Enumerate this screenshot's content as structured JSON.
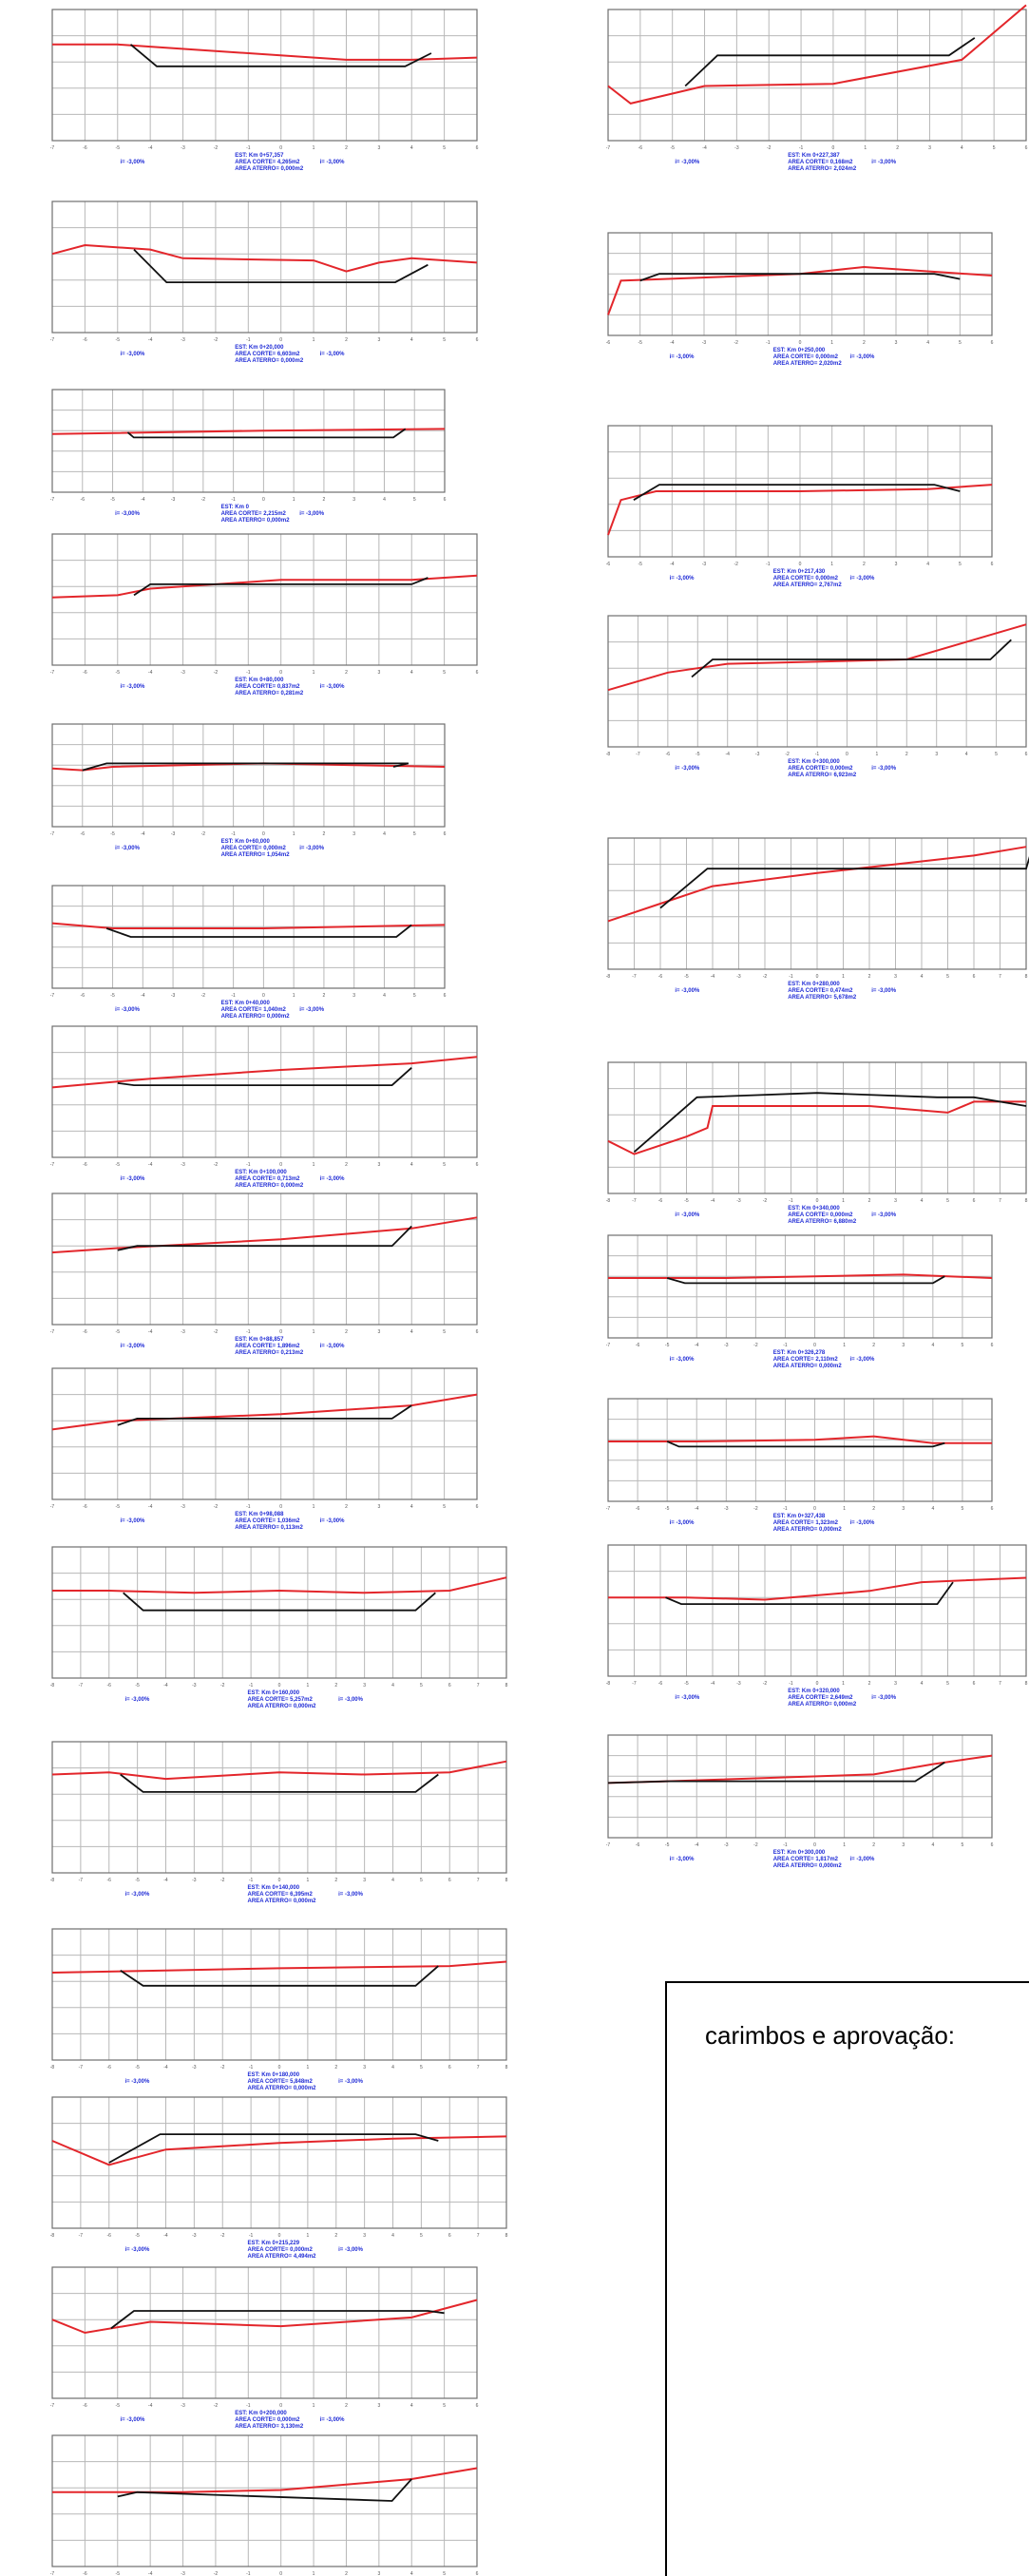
{
  "stamp": {
    "title": "carimbos e aprovação:"
  },
  "colors": {
    "grid": "#b8b8b8",
    "frame": "#6e6e6e",
    "terrain": "#e3262b",
    "design": "#111111",
    "label": "#1f2bd6"
  },
  "sections": [
    {
      "est": "EST: Km 0+57,357",
      "corte": "AREA CORTE= 4,265m2",
      "aterro": "AREA ATERRO= 0,000m2",
      "slope_left": "i= -3,00%",
      "slope_right": "i= -3,00%",
      "terrain": [
        [
          -7,
          4.4
        ],
        [
          -5,
          4.4
        ],
        [
          -4,
          4.3
        ],
        [
          2,
          3.7
        ],
        [
          4,
          3.7
        ],
        [
          6,
          3.8
        ]
      ],
      "design": [
        [
          -4.6,
          4.4
        ],
        [
          -3.8,
          3.4
        ],
        [
          3.8,
          3.4
        ],
        [
          4.6,
          4.0
        ]
      ]
    },
    {
      "est": "EST: Km 0+20,000",
      "corte": "AREA CORTE= 6,603m2",
      "aterro": "AREA ATERRO= 0,000m2",
      "slope_left": "i= -3,00%",
      "slope_right": "i= -3,00%",
      "terrain": [
        [
          -7,
          3.6
        ],
        [
          -6,
          4.0
        ],
        [
          -4,
          3.8
        ],
        [
          -3,
          3.4
        ],
        [
          1,
          3.3
        ],
        [
          2,
          2.8
        ],
        [
          3,
          3.2
        ],
        [
          4,
          3.4
        ],
        [
          6,
          3.2
        ]
      ],
      "design": [
        [
          -4.5,
          3.8
        ],
        [
          -3.5,
          2.3
        ],
        [
          3.5,
          2.3
        ],
        [
          4.5,
          3.1
        ]
      ]
    },
    {
      "est": "EST: Km 0",
      "corte": "AREA CORTE= 2,215m2",
      "aterro": "AREA ATERRO= 0,000m2",
      "slope_left": "i= -3,00%",
      "slope_right": "i= -3,00%",
      "terrain": [
        [
          -7,
          3.4
        ],
        [
          0,
          3.6
        ],
        [
          6,
          3.7
        ]
      ],
      "design": [
        [
          -4.5,
          3.5
        ],
        [
          -4.3,
          3.2
        ],
        [
          4.3,
          3.2
        ],
        [
          4.7,
          3.7
        ]
      ]
    },
    {
      "est": "EST: Km 0+80,000",
      "corte": "AREA CORTE= 0,837m2",
      "aterro": "AREA ATERRO= 0,281m2",
      "slope_left": "i= -3,00%",
      "slope_right": "i= -3,00%",
      "terrain": [
        [
          -7,
          3.1
        ],
        [
          -5,
          3.2
        ],
        [
          -4,
          3.5
        ],
        [
          0,
          3.9
        ],
        [
          4,
          3.9
        ],
        [
          6,
          4.1
        ]
      ],
      "design": [
        [
          -4.5,
          3.2
        ],
        [
          -4.0,
          3.7
        ],
        [
          4.0,
          3.7
        ],
        [
          4.5,
          4.0
        ]
      ]
    },
    {
      "est": "EST: Km 0+60,000",
      "corte": "AREA CORTE= 0,000m2",
      "aterro": "AREA ATERRO= 1,054m2",
      "slope_left": "i= -3,00%",
      "slope_right": "i= -3,00%",
      "terrain": [
        [
          -7,
          3.4
        ],
        [
          -6,
          3.3
        ],
        [
          -5,
          3.5
        ],
        [
          0,
          3.7
        ],
        [
          3,
          3.6
        ],
        [
          6,
          3.5
        ]
      ],
      "design": [
        [
          -6.0,
          3.3
        ],
        [
          -5.2,
          3.7
        ],
        [
          4.8,
          3.7
        ],
        [
          4.3,
          3.5
        ]
      ]
    },
    {
      "est": "EST: Km 0+40,000",
      "corte": "AREA CORTE= 1,040m2",
      "aterro": "AREA ATERRO= 0,000m2",
      "slope_left": "i= -3,00%",
      "slope_right": "i= -3,00%",
      "terrain": [
        [
          -7,
          3.8
        ],
        [
          -5,
          3.5
        ],
        [
          0,
          3.5
        ],
        [
          6,
          3.7
        ]
      ],
      "design": [
        [
          -5.2,
          3.5
        ],
        [
          -4.4,
          3.0
        ],
        [
          4.4,
          3.0
        ],
        [
          4.9,
          3.7
        ]
      ]
    },
    {
      "est": "EST: Km 0+100,000",
      "corte": "AREA CORTE= 0,713m2",
      "aterro": "AREA ATERRO= 0,000m2",
      "slope_left": "i= -3,00%",
      "slope_right": "i= -3,00%",
      "terrain": [
        [
          -7,
          3.2
        ],
        [
          -4,
          3.6
        ],
        [
          0,
          4.0
        ],
        [
          4,
          4.3
        ],
        [
          6,
          4.6
        ]
      ],
      "design": [
        [
          -5.0,
          3.4
        ],
        [
          -4.5,
          3.3
        ],
        [
          3.4,
          3.3
        ],
        [
          4.0,
          4.1
        ]
      ]
    },
    {
      "est": "EST: Km 0+88,857",
      "corte": "AREA CORTE= 1,896m2",
      "aterro": "AREA ATERRO= 0,213m2",
      "slope_left": "i= -3,00%",
      "slope_right": "i= -3,00%",
      "terrain": [
        [
          -7,
          3.3
        ],
        [
          -5,
          3.5
        ],
        [
          0,
          3.9
        ],
        [
          4,
          4.4
        ],
        [
          6,
          4.9
        ]
      ],
      "design": [
        [
          -5.0,
          3.4
        ],
        [
          -4.4,
          3.6
        ],
        [
          3.4,
          3.6
        ],
        [
          4.0,
          4.5
        ]
      ]
    },
    {
      "est": "EST: Km 0+98,088",
      "corte": "AREA CORTE= 1,036m2",
      "aterro": "AREA ATERRO= 0,113m2",
      "slope_left": "i= -3,00%",
      "slope_right": "i= -3,00%",
      "terrain": [
        [
          -7,
          3.2
        ],
        [
          -5,
          3.6
        ],
        [
          0,
          3.9
        ],
        [
          4,
          4.3
        ],
        [
          6,
          4.8
        ]
      ],
      "design": [
        [
          -5.0,
          3.4
        ],
        [
          -4.4,
          3.7
        ],
        [
          3.4,
          3.7
        ],
        [
          4.0,
          4.3
        ]
      ]
    },
    {
      "est": "EST: Km 0+160,000",
      "corte": "AREA CORTE= 5,257m2",
      "aterro": "AREA ATERRO= 0,000m2",
      "slope_left": "i= -3,00%",
      "slope_right": "i= -3,00%",
      "terrain": [
        [
          -8,
          4.0
        ],
        [
          -6,
          4.0
        ],
        [
          -3,
          3.9
        ],
        [
          0,
          4.0
        ],
        [
          3,
          3.9
        ],
        [
          6,
          4.0
        ],
        [
          8,
          4.6
        ]
      ],
      "design": [
        [
          -5.5,
          3.9
        ],
        [
          -4.8,
          3.1
        ],
        [
          4.8,
          3.1
        ],
        [
          5.5,
          3.9
        ]
      ]
    },
    {
      "est": "EST: Km 0+140,000",
      "corte": "AREA CORTE= 6,395m2",
      "aterro": "AREA ATERRO= 0,000m2",
      "slope_left": "i= -3,00%",
      "slope_right": "i= -3,00%",
      "terrain": [
        [
          -8,
          4.5
        ],
        [
          -6,
          4.6
        ],
        [
          -4,
          4.3
        ],
        [
          0,
          4.6
        ],
        [
          3,
          4.5
        ],
        [
          6,
          4.6
        ],
        [
          8,
          5.1
        ]
      ],
      "design": [
        [
          -5.6,
          4.5
        ],
        [
          -4.8,
          3.7
        ],
        [
          4.8,
          3.7
        ],
        [
          5.6,
          4.5
        ]
      ]
    },
    {
      "est": "EST: Km 0+180,000",
      "corte": "AREA CORTE= 5,848m2",
      "aterro": "AREA ATERRO= 0,000m2",
      "slope_left": "i= -3,00%",
      "slope_right": "i= -3,00%",
      "terrain": [
        [
          -8,
          4.0
        ],
        [
          -4,
          4.1
        ],
        [
          0,
          4.2
        ],
        [
          6,
          4.3
        ],
        [
          8,
          4.5
        ]
      ],
      "design": [
        [
          -5.6,
          4.1
        ],
        [
          -4.8,
          3.4
        ],
        [
          4.8,
          3.4
        ],
        [
          5.6,
          4.3
        ]
      ]
    },
    {
      "est": "EST: Km 0+215,229",
      "corte": "AREA CORTE= 0,000m2",
      "aterro": "AREA ATERRO= 4,494m2",
      "slope_left": "i= -3,00%",
      "slope_right": "i= -3,00%",
      "terrain": [
        [
          -8,
          4.0
        ],
        [
          -6,
          2.9
        ],
        [
          -4,
          3.6
        ],
        [
          0,
          3.9
        ],
        [
          4,
          4.1
        ],
        [
          8,
          4.2
        ]
      ],
      "design": [
        [
          -6.0,
          3.0
        ],
        [
          -4.2,
          4.3
        ],
        [
          4.8,
          4.3
        ],
        [
          5.6,
          4.0
        ]
      ]
    },
    {
      "est": "EST: Km 0+200,000",
      "corte": "AREA CORTE= 0,000m2",
      "aterro": "AREA ATERRO= 3,130m2",
      "slope_left": "i= -3,00%",
      "slope_right": "i= -3,00%",
      "terrain": [
        [
          -7,
          3.6
        ],
        [
          -6,
          3.0
        ],
        [
          -4,
          3.5
        ],
        [
          0,
          3.3
        ],
        [
          4,
          3.7
        ],
        [
          6,
          4.5
        ]
      ],
      "design": [
        [
          -5.2,
          3.2
        ],
        [
          -4.5,
          4.0
        ],
        [
          4.5,
          4.0
        ],
        [
          5.0,
          3.9
        ]
      ]
    },
    {
      "est": "EST: Km 0+200,000",
      "corte": "AREA CORTE= 0,000m2",
      "aterro": "AREA ATERRO= 0,000m2",
      "slope_left": "i= -3,00%",
      "slope_right": "i= -3,00%",
      "terrain": [
        [
          -7,
          3.4
        ],
        [
          -3,
          3.4
        ],
        [
          0,
          3.5
        ],
        [
          4,
          4.0
        ],
        [
          6,
          4.5
        ]
      ],
      "design": [
        [
          -5.0,
          3.2
        ],
        [
          -4.4,
          3.4
        ],
        [
          3.4,
          3.0
        ],
        [
          4.0,
          4.0
        ]
      ]
    },
    {
      "est": "EST: Km 0+227,387",
      "corte": "AREA CORTE= 0,168m2",
      "aterro": "AREA ATERRO= 2,024m2",
      "slope_left": "i= -3,00%",
      "slope_right": "i= -3,00%",
      "terrain": [
        [
          -7,
          2.5
        ],
        [
          -6.3,
          1.7
        ],
        [
          -4,
          2.5
        ],
        [
          0,
          2.6
        ],
        [
          4,
          3.7
        ],
        [
          6,
          6.2
        ]
      ],
      "design": [
        [
          -4.6,
          2.5
        ],
        [
          -3.6,
          3.9
        ],
        [
          3.6,
          3.9
        ],
        [
          4.4,
          4.7
        ]
      ]
    },
    {
      "est": "EST: Km 0+250,000",
      "corte": "AREA CORTE= 0,000m2",
      "aterro": "AREA ATERRO= 2,020m2",
      "slope_left": "i= -3,00%",
      "slope_right": "i= -3,00%",
      "terrain": [
        [
          -6,
          1.2
        ],
        [
          -5.6,
          3.2
        ],
        [
          0,
          3.6
        ],
        [
          2,
          4.0
        ],
        [
          6,
          3.5
        ]
      ],
      "design": [
        [
          -5.0,
          3.2
        ],
        [
          -4.4,
          3.6
        ],
        [
          4.2,
          3.6
        ],
        [
          5.0,
          3.3
        ]
      ]
    },
    {
      "est": "EST: Km 0+217,430",
      "corte": "AREA CORTE= 0,000m2",
      "aterro": "AREA ATERRO= 2,767m2",
      "slope_left": "i= -3,00%",
      "slope_right": "i= -3,00%",
      "terrain": [
        [
          -6,
          1.0
        ],
        [
          -5.6,
          2.6
        ],
        [
          -4.5,
          3.0
        ],
        [
          0,
          3.0
        ],
        [
          4,
          3.1
        ],
        [
          6,
          3.3
        ]
      ],
      "design": [
        [
          -5.2,
          2.6
        ],
        [
          -4.4,
          3.3
        ],
        [
          4.2,
          3.3
        ],
        [
          5.0,
          3.0
        ]
      ]
    },
    {
      "est": "EST: Km 0+300,000",
      "corte": "AREA CORTE= 0,000m2",
      "aterro": "AREA ATERRO= 6,923m2",
      "slope_left": "i= -3,00%",
      "slope_right": "i= -3,00%",
      "terrain": [
        [
          -8,
          2.6
        ],
        [
          -6,
          3.4
        ],
        [
          -4,
          3.8
        ],
        [
          2,
          4.0
        ],
        [
          4,
          4.8
        ],
        [
          6,
          5.6
        ]
      ],
      "design": [
        [
          -5.2,
          3.2
        ],
        [
          -4.5,
          4.0
        ],
        [
          4.8,
          4.0
        ],
        [
          5.5,
          4.9
        ]
      ]
    },
    {
      "est": "EST: Km 0+280,000",
      "corte": "AREA CORTE= 0,474m2",
      "aterro": "AREA ATERRO= 5,678m2",
      "slope_left": "i= -3,00%",
      "slope_right": "i= -3,00%",
      "terrain": [
        [
          -8,
          2.2
        ],
        [
          -6,
          3.0
        ],
        [
          -4,
          3.8
        ],
        [
          0,
          4.4
        ],
        [
          6,
          5.2
        ],
        [
          8,
          5.6
        ]
      ],
      "design": [
        [
          -6.0,
          2.8
        ],
        [
          -4.2,
          4.6
        ],
        [
          4.4,
          4.6
        ],
        [
          8.0,
          4.6
        ],
        [
          8.2,
          5.4
        ]
      ]
    },
    {
      "est": "EST: Km 0+340,000",
      "corte": "AREA CORTE= 0,000m2",
      "aterro": "AREA ATERRO= 6,880m2",
      "slope_left": "i= -3,00%",
      "slope_right": "i= -3,00%",
      "terrain": [
        [
          -8,
          2.4
        ],
        [
          -7,
          1.8
        ],
        [
          -5,
          2.6
        ],
        [
          -4.2,
          3.0
        ],
        [
          -4,
          4.0
        ],
        [
          2,
          4.0
        ],
        [
          5,
          3.7
        ],
        [
          6,
          4.2
        ],
        [
          8,
          4.2
        ]
      ],
      "design": [
        [
          -7.0,
          1.9
        ],
        [
          -4.6,
          4.4
        ],
        [
          0,
          4.6
        ],
        [
          4.6,
          4.4
        ],
        [
          6.0,
          4.4
        ],
        [
          8.0,
          4.0
        ]
      ]
    },
    {
      "est": "EST: Km 0+326,278",
      "corte": "AREA CORTE= 2,110m2",
      "aterro": "AREA ATERRO= 0,000m2",
      "slope_left": "i= -3,00%",
      "slope_right": "i= -3,00%",
      "terrain": [
        [
          -7,
          3.5
        ],
        [
          -3,
          3.5
        ],
        [
          0,
          3.6
        ],
        [
          3,
          3.7
        ],
        [
          6,
          3.5
        ]
      ],
      "design": [
        [
          -5.0,
          3.5
        ],
        [
          -4.4,
          3.2
        ],
        [
          4.0,
          3.2
        ],
        [
          4.4,
          3.6
        ]
      ]
    },
    {
      "est": "EST: Km 0+327,438",
      "corte": "AREA CORTE= 1,323m2",
      "aterro": "AREA ATERRO= 0,000m2",
      "slope_left": "i= -3,00%",
      "slope_right": "i= -3,00%",
      "terrain": [
        [
          -7,
          3.5
        ],
        [
          -4,
          3.5
        ],
        [
          0,
          3.6
        ],
        [
          2,
          3.8
        ],
        [
          4,
          3.4
        ],
        [
          6,
          3.4
        ]
      ],
      "design": [
        [
          -5.0,
          3.5
        ],
        [
          -4.6,
          3.2
        ],
        [
          4.0,
          3.2
        ],
        [
          4.4,
          3.4
        ]
      ]
    },
    {
      "est": "EST: Km 0+320,000",
      "corte": "AREA CORTE= 2,649m2",
      "aterro": "AREA ATERRO= 0,000m2",
      "slope_left": "i= -3,00%",
      "slope_right": "i= -3,00%",
      "terrain": [
        [
          -8,
          3.6
        ],
        [
          -5,
          3.6
        ],
        [
          -2,
          3.5
        ],
        [
          2,
          3.9
        ],
        [
          4,
          4.3
        ],
        [
          8,
          4.5
        ]
      ],
      "design": [
        [
          -5.8,
          3.6
        ],
        [
          -5.2,
          3.3
        ],
        [
          4.6,
          3.3
        ],
        [
          5.2,
          4.3
        ]
      ]
    },
    {
      "est": "EST: Km 0+300,000",
      "corte": "AREA CORTE= 1,817m2",
      "aterro": "AREA ATERRO= 0,000m2",
      "slope_left": "i= -3,00%",
      "slope_right": "i= -3,00%",
      "terrain": [
        [
          -7,
          3.2
        ],
        [
          -5,
          3.3
        ],
        [
          2,
          3.7
        ],
        [
          4,
          4.3
        ],
        [
          6,
          4.8
        ]
      ],
      "design": [
        [
          -7.0,
          3.2
        ],
        [
          -5.0,
          3.3
        ],
        [
          3.4,
          3.3
        ],
        [
          4.4,
          4.4
        ]
      ]
    }
  ]
}
